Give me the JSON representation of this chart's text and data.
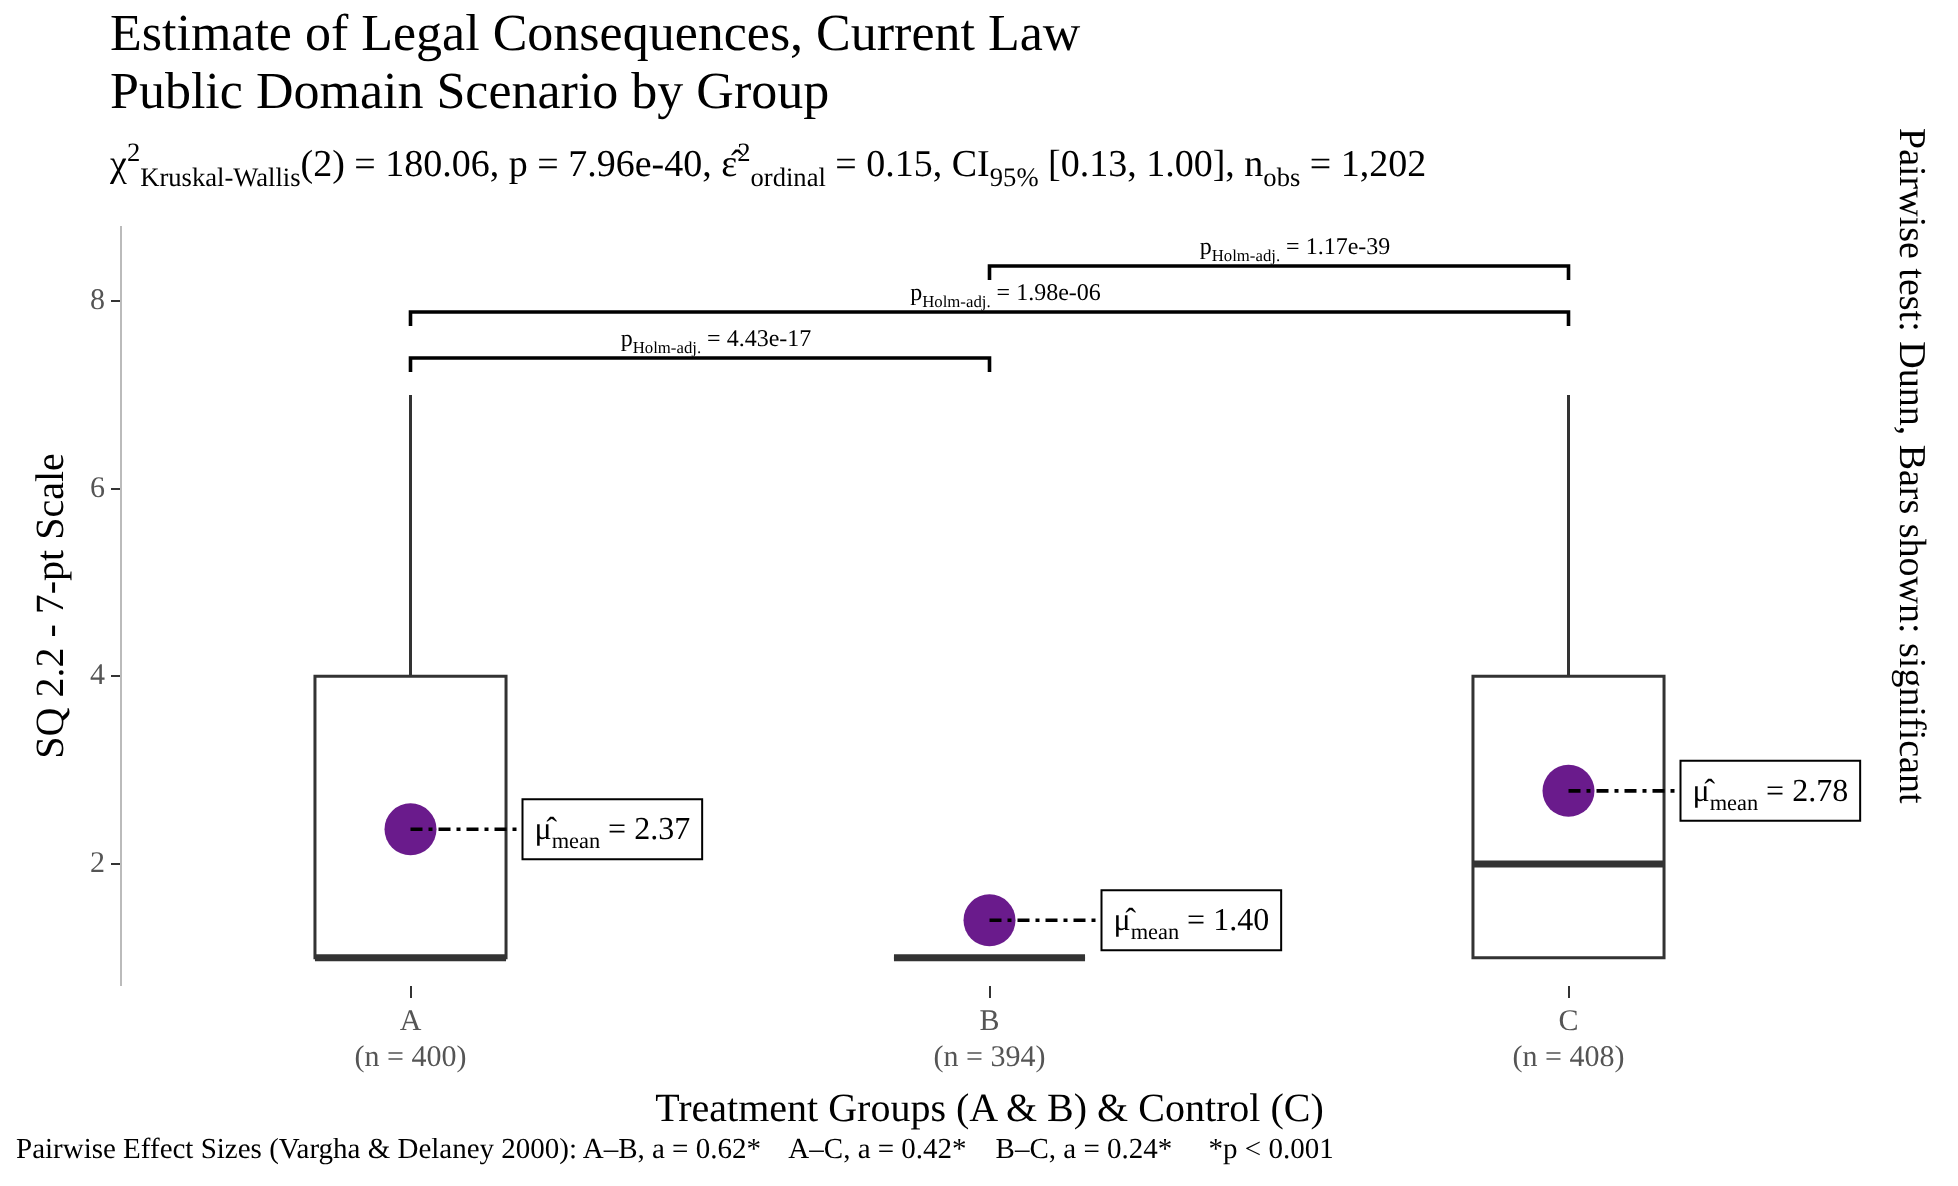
{
  "chart_data": {
    "type": "box",
    "title": "Estimate of Legal Consequences, Current Law\nPublic Domain Scenario by Group",
    "subtitle": "χ$^{2}$$_{Kruskal-Wallis}$(2) = 180.06, p = 7.96e-40, ε̂$^{2}$$_{ordinal}$ = 0.15, CI$_{95%}$ [0.13, 1.00], n$_{obs}$ = 1,202",
    "xlabel": "Treatment Groups (A & B) & Control (C)",
    "ylabel": "SQ 2.2 - 7-pt Scale",
    "categories": [
      "A\n(n = 400)",
      "B\n(n = 394)",
      "C\n(n = 408)"
    ],
    "boxes": [
      {
        "low": 1,
        "q1": 1,
        "median": 1,
        "q3": 4,
        "high": 7
      },
      {
        "low": 1,
        "q1": 1,
        "median": 1,
        "q3": 1,
        "high": 1
      },
      {
        "low": 1,
        "q1": 1,
        "median": 2,
        "q3": 4,
        "high": 7
      }
    ],
    "color": "#333333",
    "series": [
      {
        "type": "scatter",
        "color": "#6a1b8c",
        "x": [
          "A\n(n = 400)",
          "B\n(n = 394)",
          "C\n(n = 408)"
        ],
        "values": [
          2.37,
          1.4,
          2.78
        ],
        "value_labels": [
          "μ̂$_{mean}$ = 2.37",
          "μ̂$_{mean}$ = 1.40",
          "μ̂$_{mean}$ = 2.78"
        ]
      }
    ],
    "ylim": [
      0.7,
      8.8
    ],
    "yticks": [
      2,
      4,
      6,
      8
    ],
    "grid": false,
    "legend": false,
    "annotations": [
      "p$_{Holm-adj.}$ = 4.43e-17",
      "p$_{Holm-adj.}$ = 1.98e-06",
      "p$_{Holm-adj.}$ = 1.17e-39",
      "Pairwise test: Dunn, Bars shown: significant",
      "Pairwise Effect Sizes (Vargha & Delaney 2000): A–B, a = 0.62*    A–C, a = 0.42*    B–C, a = 0.24*     *p < 0.001"
    ]
  }
}
